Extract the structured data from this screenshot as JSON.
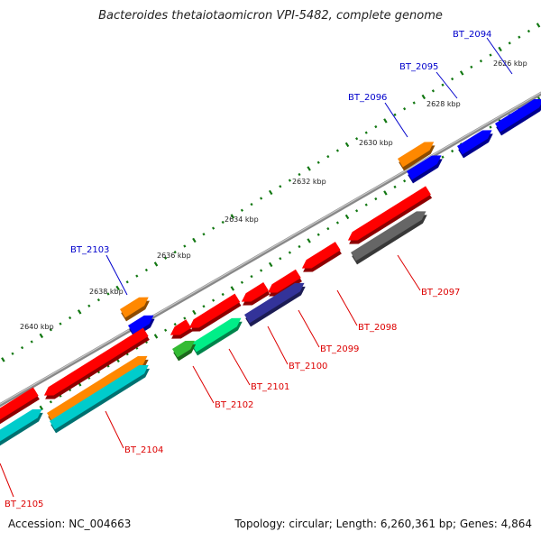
{
  "title": "Bacteroides thetaiotaomicron VPI-5482, complete genome",
  "footer": {
    "accession": "Accession: NC_004663",
    "summary": "Topology: circular; Length: 6,260,361 bp; Genes: 4,864"
  },
  "tick_labels": [
    "2626 kbp",
    "2628 kbp",
    "2630 kbp",
    "2632 kbp",
    "2634 kbp",
    "2636 kbp",
    "2638 kbp",
    "2640 kbp"
  ],
  "genes_forward": [
    "BT_2094",
    "BT_2095",
    "BT_2096",
    "BT_2103"
  ],
  "genes_reverse": [
    "BT_2097",
    "BT_2098",
    "BT_2099",
    "BT_2100",
    "BT_2101",
    "BT_2102",
    "BT_2104",
    "BT_2105"
  ],
  "colors": {
    "forward_label": "#0000cc",
    "reverse_label": "#dd0000",
    "backbone": "#888888",
    "tick_dots": "#117711",
    "red": "#ff0000",
    "blue": "#0000ff",
    "orange": "#ff8800",
    "gray": "#666666",
    "navy": "#333399",
    "mint": "#00ee88",
    "green": "#33bb33",
    "cyan": "#00cccc"
  }
}
